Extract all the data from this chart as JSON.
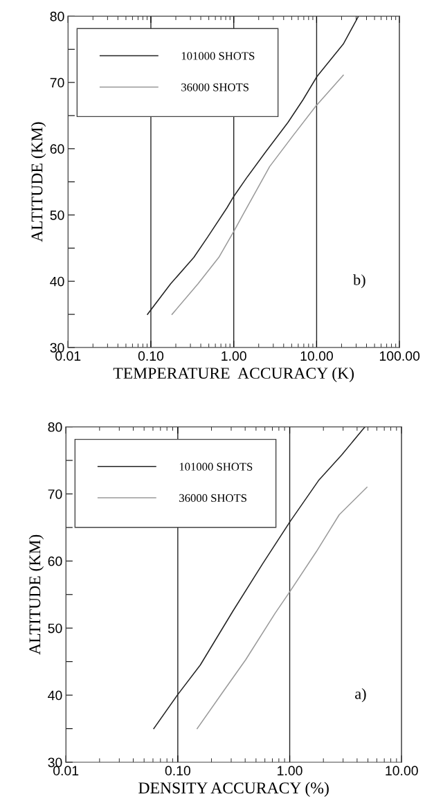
{
  "chart_data": [
    {
      "type": "line",
      "xlabel": "TEMPERATURE  ACCURACY (K)",
      "ylabel": "ALTITUDE (KM)",
      "log": "x",
      "grid": "x",
      "legend": "top left",
      "marker": "none",
      "line_style": "solid",
      "xlim": [
        0.01,
        100
      ],
      "xticks": [
        {
          "value": 0.01,
          "label": "0.01"
        },
        {
          "value": 0.1,
          "label": "0.10"
        },
        {
          "value": 1,
          "label": "1.00"
        },
        {
          "value": 10,
          "label": "10.00"
        },
        {
          "value": 100,
          "label": "100.00"
        }
      ],
      "ylim": [
        30,
        80
      ],
      "yticks": [
        30,
        {
          "value": 35,
          "label": null
        },
        40,
        {
          "value": 45,
          "label": null
        },
        50,
        {
          "value": 55,
          "label": null
        },
        60,
        {
          "value": 65,
          "label": null
        },
        70,
        {
          "value": 75,
          "label": null
        },
        80
      ],
      "series": [
        {
          "name": "101000 SHOTS",
          "color": "#222222",
          "x": [
            0.091,
            0.173,
            0.33,
            0.48,
            0.83,
            1.0,
            1.43,
            2.39,
            4.53,
            6.86,
            10.1,
            21,
            32
          ],
          "values": [
            35.0,
            39.6,
            43.6,
            46.6,
            51.1,
            52.8,
            55.6,
            59.4,
            64.0,
            67.4,
            70.9,
            75.8,
            80
          ]
        },
        {
          "name": "36000 SHOTS",
          "color": "#9a9a9a",
          "x": [
            0.18,
            0.37,
            0.66,
            1.0,
            1.34,
            2.71,
            5.14,
            9.75,
            21
          ],
          "values": [
            35.0,
            39.6,
            43.6,
            47.5,
            50.4,
            57.3,
            61.9,
            66.4,
            71.1
          ]
        }
      ],
      "annotations": [
        "b)"
      ]
    },
    {
      "type": "line",
      "xlabel": "DENSITY ACCURACY (%)",
      "ylabel": "ALTITUDE (KM)",
      "log": "x",
      "grid": "x",
      "legend": "top left",
      "marker": "none",
      "line_style": "solid",
      "xlim": [
        0.01,
        10
      ],
      "xticks": [
        {
          "value": 0.01,
          "label": "0.01"
        },
        {
          "value": 0.1,
          "label": "0.10"
        },
        {
          "value": 1,
          "label": "1.00"
        },
        {
          "value": 10,
          "label": "10.00"
        }
      ],
      "ylim": [
        30,
        80
      ],
      "yticks": [
        30,
        {
          "value": 35,
          "label": null
        },
        40,
        {
          "value": 45,
          "label": null
        },
        50,
        {
          "value": 55,
          "label": null
        },
        60,
        {
          "value": 65,
          "label": null
        },
        70,
        {
          "value": 75,
          "label": null
        },
        80
      ],
      "series": [
        {
          "name": "101000 SHOTS",
          "color": "#222222",
          "x": [
            0.061,
            0.099,
            0.159,
            0.31,
            0.574,
            1.0,
            1.81,
            2.91,
            4.7
          ],
          "values": [
            35.0,
            40.0,
            44.5,
            52.5,
            59.6,
            65.8,
            72.0,
            75.8,
            80
          ]
        },
        {
          "name": "36000 SHOTS",
          "color": "#9a9a9a",
          "x": [
            0.149,
            0.251,
            0.405,
            0.74,
            1.01,
            1.73,
            2.77,
            4.9
          ],
          "values": [
            35.0,
            40.4,
            45.3,
            52.2,
            55.5,
            61.4,
            66.9,
            71.0
          ]
        }
      ],
      "annotations": [
        "a)"
      ]
    }
  ]
}
